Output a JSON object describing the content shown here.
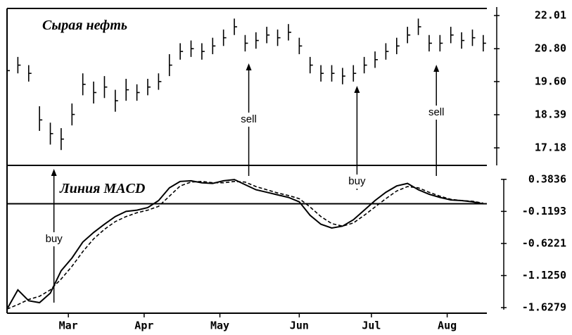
{
  "chart_data": [
    {
      "type": "ohlc",
      "title": "Сырая нефть",
      "color": "#000000",
      "x": [
        0,
        3,
        6,
        9,
        12,
        15,
        18,
        21,
        24,
        27,
        30,
        33,
        36,
        39,
        42,
        45,
        48,
        51,
        54,
        57,
        60,
        63,
        66,
        69,
        72,
        75,
        78,
        81,
        84,
        87,
        90,
        93,
        96,
        99,
        102,
        105,
        108,
        111,
        114,
        117,
        120,
        123,
        126,
        129,
        132
      ],
      "high": [
        20.3,
        20.5,
        20.2,
        18.7,
        18.1,
        17.9,
        18.8,
        19.9,
        19.6,
        19.8,
        19.3,
        19.7,
        19.5,
        19.7,
        19.9,
        20.6,
        21.0,
        21.1,
        21.0,
        21.2,
        21.5,
        21.9,
        21.3,
        21.4,
        21.6,
        21.5,
        21.7,
        21.2,
        20.5,
        20.2,
        20.2,
        20.1,
        20.2,
        20.5,
        20.7,
        21.0,
        21.2,
        21.6,
        21.9,
        21.3,
        21.3,
        21.6,
        21.4,
        21.5,
        21.3
      ],
      "low": [
        19.7,
        19.9,
        19.6,
        17.8,
        17.3,
        17.1,
        18.0,
        19.1,
        18.8,
        19.0,
        18.5,
        18.9,
        18.9,
        19.1,
        19.3,
        19.8,
        20.4,
        20.5,
        20.4,
        20.6,
        20.9,
        21.3,
        20.7,
        20.8,
        21.0,
        20.9,
        21.1,
        20.6,
        19.9,
        19.6,
        19.6,
        19.5,
        19.6,
        19.9,
        20.1,
        20.4,
        20.6,
        21.0,
        21.3,
        20.7,
        20.7,
        21.0,
        20.8,
        20.9,
        20.7
      ],
      "close": [
        20.0,
        20.2,
        19.9,
        18.2,
        17.7,
        17.5,
        18.4,
        19.5,
        19.2,
        19.4,
        18.9,
        19.3,
        19.2,
        19.4,
        19.6,
        20.2,
        20.7,
        20.8,
        20.7,
        20.9,
        21.2,
        21.6,
        21.0,
        21.1,
        21.3,
        21.2,
        21.4,
        20.9,
        20.2,
        19.9,
        19.9,
        19.8,
        19.9,
        20.2,
        20.4,
        20.7,
        20.9,
        21.3,
        21.6,
        21.0,
        21.0,
        21.3,
        21.1,
        21.2,
        21.0
      ],
      "xlim": [
        0,
        133
      ],
      "ylim": [
        16.54,
        22.27
      ],
      "yticks": [
        22.01,
        {
          "value": 20.8,
          "label": "20.80"
        },
        {
          "value": 19.6,
          "label": "19.60"
        },
        18.39,
        17.18
      ],
      "annotations": [
        {
          "text": "buy",
          "x": 13
        },
        {
          "text": "sell",
          "x": 67
        },
        {
          "text": "buy",
          "x": 97
        },
        {
          "text": "sell",
          "x": 119
        }
      ]
    },
    {
      "type": "line",
      "title": "Линия MACD",
      "x": [
        0,
        3,
        6,
        9,
        12,
        15,
        18,
        21,
        24,
        27,
        30,
        33,
        36,
        39,
        42,
        45,
        48,
        51,
        54,
        57,
        60,
        63,
        66,
        69,
        72,
        75,
        78,
        81,
        84,
        87,
        90,
        93,
        96,
        99,
        102,
        105,
        108,
        111,
        114,
        117,
        120,
        123,
        126,
        129,
        132
      ],
      "series": [
        {
          "color": "#000000",
          "dash": false,
          "values": [
            -1.65,
            -1.35,
            -1.52,
            -1.55,
            -1.4,
            -1.05,
            -0.85,
            -0.6,
            -0.45,
            -0.32,
            -0.2,
            -0.12,
            -0.1,
            -0.06,
            0.05,
            0.25,
            0.35,
            0.36,
            0.33,
            0.32,
            0.36,
            0.38,
            0.3,
            0.22,
            0.18,
            0.14,
            0.1,
            0.03,
            -0.18,
            -0.32,
            -0.38,
            -0.35,
            -0.25,
            -0.1,
            0.05,
            0.18,
            0.28,
            0.32,
            0.22,
            0.15,
            0.1,
            0.06,
            0.05,
            0.03,
            0.0
          ]
        },
        {
          "color": "#000000",
          "dash": true,
          "values": [
            -1.65,
            -1.58,
            -1.5,
            -1.45,
            -1.35,
            -1.18,
            -0.98,
            -0.75,
            -0.55,
            -0.4,
            -0.28,
            -0.2,
            -0.14,
            -0.1,
            -0.04,
            0.12,
            0.28,
            0.34,
            0.35,
            0.33,
            0.33,
            0.35,
            0.34,
            0.27,
            0.22,
            0.17,
            0.13,
            0.08,
            -0.05,
            -0.2,
            -0.31,
            -0.35,
            -0.3,
            -0.18,
            -0.05,
            0.08,
            0.2,
            0.27,
            0.25,
            0.18,
            0.12,
            0.07,
            0.05,
            0.04,
            0.01
          ]
        }
      ],
      "hline": 0,
      "xlim": [
        0,
        133
      ],
      "ylim": [
        -1.715,
        0.602
      ],
      "yticks": [
        0.3836,
        -0.1193,
        -0.6221,
        {
          "value": -1.125,
          "label": "-1.1250"
        },
        -1.6279
      ],
      "xticks": [
        {
          "value": 17,
          "label": "Mar"
        },
        {
          "value": 38,
          "label": "Apr"
        },
        {
          "value": 59,
          "label": "May"
        },
        {
          "value": 81,
          "label": "Jun"
        },
        {
          "value": 101,
          "label": "Jul"
        },
        {
          "value": 122,
          "label": "Aug"
        }
      ]
    }
  ]
}
